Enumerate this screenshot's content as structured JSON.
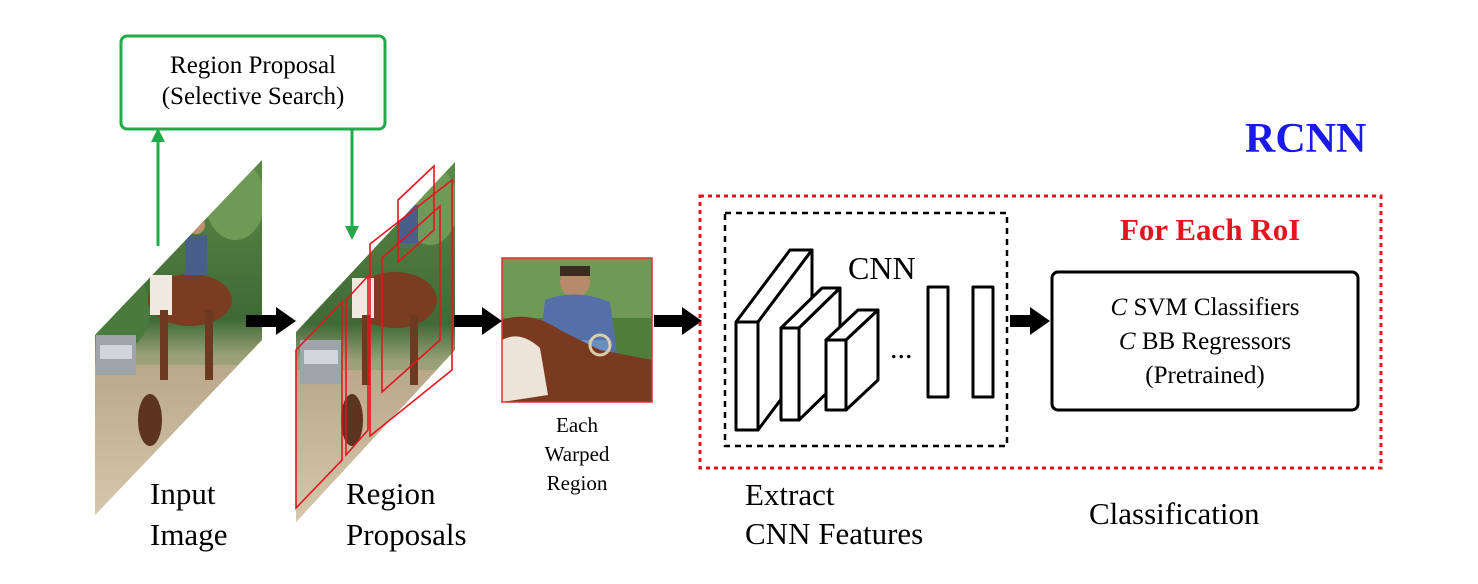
{
  "diagram": {
    "title": "RCNN",
    "region_proposal_box": {
      "line1": "Region Proposal",
      "line2": "(Selective Search)"
    },
    "roi_label": "For Each RoI",
    "cnn_label": "CNN",
    "ellipsis": "...",
    "classifier_box": {
      "line1_italic": "C",
      "line1_rest": " SVM Classifiers",
      "line2_italic": "C",
      "line2_rest": " BB Regressors",
      "line3": "(Pretrained)"
    },
    "captions": {
      "input_image": [
        "Input",
        "Image"
      ],
      "region_proposals": [
        "Region",
        "Proposals"
      ],
      "warped_region": [
        "Each",
        "Warped",
        "Region"
      ],
      "extract_features": [
        "Extract",
        "CNN Features"
      ],
      "classification": "Classification"
    },
    "colors": {
      "title": "#1a1ae6",
      "roi": "#e6141e",
      "proposal_border": "#22aa4a",
      "dotted_frame": "#e6141e",
      "warp_border": "#e03030"
    },
    "photo_content": "rider on brown and white horse, dog, pickup truck, trees"
  }
}
